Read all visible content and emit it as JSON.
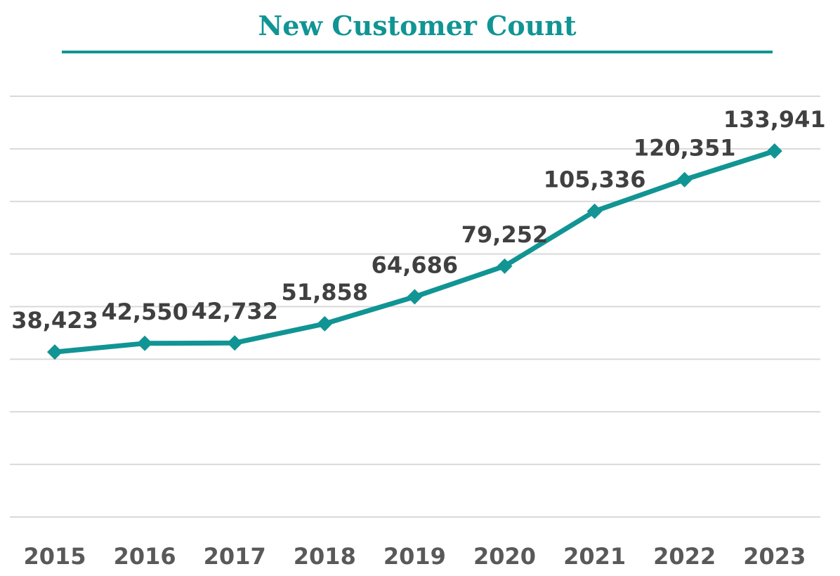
{
  "chart_data": {
    "type": "line",
    "title": "New Customer Count",
    "categories": [
      "2015",
      "2016",
      "2017",
      "2018",
      "2019",
      "2020",
      "2021",
      "2022",
      "2023"
    ],
    "series": [
      {
        "values": [
          38423,
          42550,
          42732,
          51858,
          64686,
          79252,
          105336,
          120351,
          133941
        ],
        "data_labels": [
          "38,423",
          "42,550",
          "42,732",
          "51,858",
          "64,686",
          "79,252",
          "105,336",
          "120,351",
          "133,941"
        ]
      }
    ],
    "xlabel": "",
    "ylabel": "",
    "ylim": [
      -40000,
      160000
    ],
    "grid": true,
    "marker": "diamond",
    "colors": {
      "accent": "#119494",
      "grid": "#d9d9d9",
      "label": "#404040",
      "tick": "#595959"
    }
  }
}
